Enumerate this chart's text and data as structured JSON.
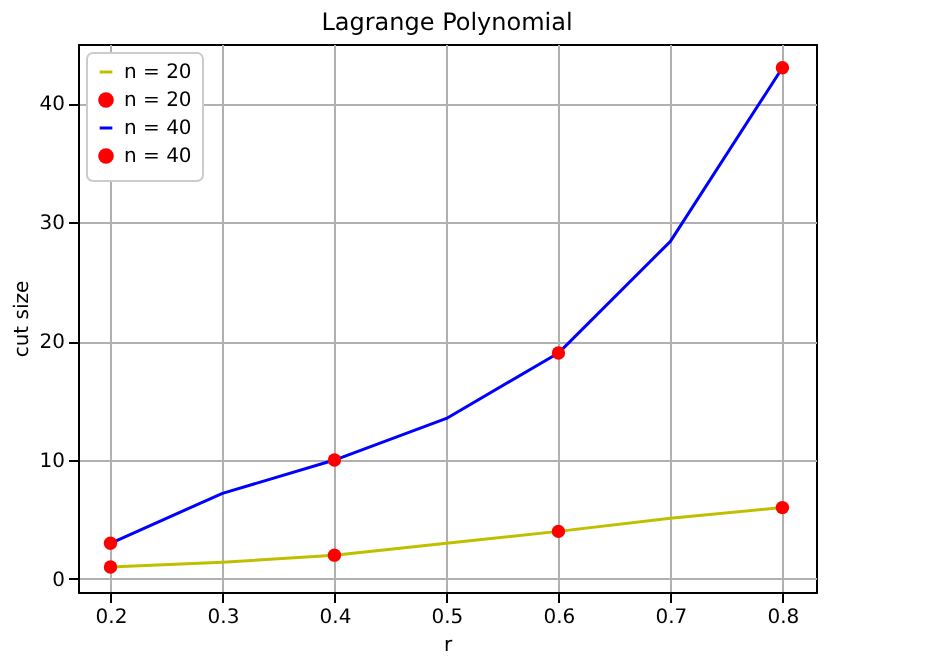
{
  "chart_data": {
    "type": "line",
    "title": "Lagrange Polynomial",
    "xlabel": "r",
    "ylabel": "cut size",
    "xlim": [
      0.171,
      0.83
    ],
    "ylim": [
      -1.1,
      45
    ],
    "xticks": [
      0.2,
      0.3,
      0.4,
      0.5,
      0.6,
      0.7,
      0.8
    ],
    "yticks": [
      0,
      10,
      20,
      30,
      40
    ],
    "grid": true,
    "legend": "top left",
    "series": [
      {
        "name": "n = 20",
        "color": "#bfbf00",
        "x": [
          0.2,
          0.3,
          0.4,
          0.5,
          0.6,
          0.7,
          0.8
        ],
        "values": [
          1,
          1.4,
          2,
          3.0,
          4,
          5.1,
          6
        ]
      },
      {
        "name": "n = 20",
        "type": "scatter",
        "marker": "circle",
        "color": "#ff0000",
        "x": [
          0.2,
          0.4,
          0.6,
          0.8
        ],
        "values": [
          1,
          2,
          4,
          6
        ]
      },
      {
        "name": "n = 40",
        "color": "#0000ff",
        "x": [
          0.2,
          0.3,
          0.4,
          0.5,
          0.6,
          0.7,
          0.8
        ],
        "values": [
          3,
          7.2,
          10,
          13.5,
          19,
          28.4,
          43
        ]
      },
      {
        "name": "n = 40",
        "type": "scatter",
        "marker": "circle",
        "color": "#ff0000",
        "x": [
          0.2,
          0.4,
          0.6,
          0.8
        ],
        "values": [
          3,
          10,
          19,
          43
        ]
      }
    ]
  }
}
